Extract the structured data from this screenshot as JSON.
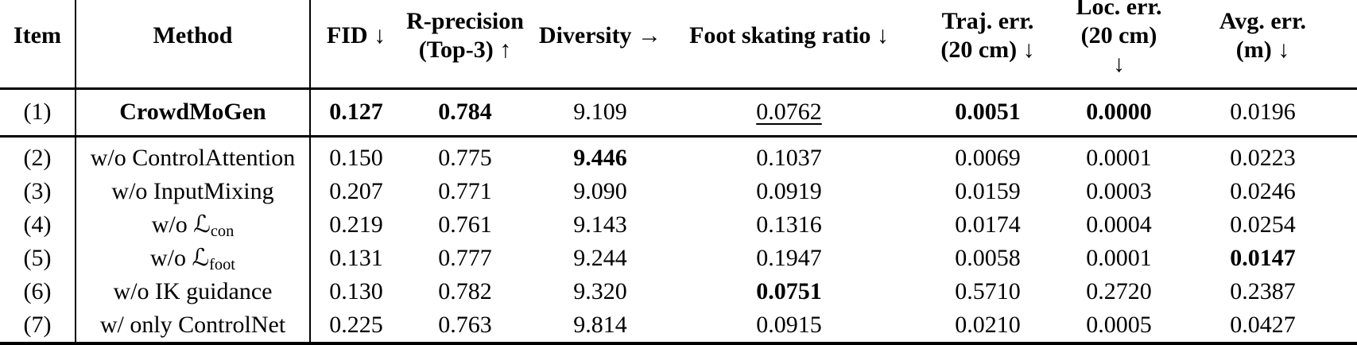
{
  "colors": {
    "text": "#000000",
    "background": "#ffffff",
    "rules": "#000000"
  },
  "table": {
    "columns": [
      {
        "id": "item",
        "line1": "Item",
        "line2": ""
      },
      {
        "id": "method",
        "line1": "Method",
        "line2": ""
      },
      {
        "id": "fid",
        "line1": "FID ↓",
        "line2": ""
      },
      {
        "id": "r_precision",
        "line1": "R-precision",
        "line2": "(Top-3) ↑"
      },
      {
        "id": "diversity",
        "line1": "Diversity →",
        "line2": ""
      },
      {
        "id": "foot_skating",
        "line1": "Foot skating ratio ↓",
        "line2": ""
      },
      {
        "id": "traj_err",
        "line1": "Traj. err.",
        "line2": "(20 cm) ↓"
      },
      {
        "id": "loc_err",
        "line1": "Loc. err.",
        "line2": "(20 cm) ↓"
      },
      {
        "id": "avg_err",
        "line1": "Avg. err.",
        "line2": "(m) ↓"
      }
    ],
    "rows": [
      {
        "cells": [
          {
            "t": "(1)"
          },
          {
            "t": "CrowdMoGen",
            "b": true
          },
          {
            "t": "0.127",
            "b": true
          },
          {
            "t": "0.784",
            "b": true
          },
          {
            "t": "9.109"
          },
          {
            "t": "0.0762",
            "u": true
          },
          {
            "t": "0.0051",
            "b": true
          },
          {
            "t": "0.0000",
            "b": true
          },
          {
            "t": "0.0196"
          }
        ]
      },
      {
        "cells": [
          {
            "t": "(2)"
          },
          {
            "t": "w/o ControlAttention"
          },
          {
            "t": "0.150"
          },
          {
            "t": "0.775"
          },
          {
            "t": "9.446",
            "b": true
          },
          {
            "t": "0.1037"
          },
          {
            "t": "0.0069"
          },
          {
            "t": "0.0001"
          },
          {
            "t": "0.0223"
          }
        ]
      },
      {
        "cells": [
          {
            "t": "(3)"
          },
          {
            "t": "w/o InputMixing"
          },
          {
            "t": "0.207"
          },
          {
            "t": "0.771"
          },
          {
            "t": "9.090"
          },
          {
            "t": "0.0919"
          },
          {
            "t": "0.0159"
          },
          {
            "t": "0.0003"
          },
          {
            "t": "0.0246"
          }
        ]
      },
      {
        "cells": [
          {
            "t": "(4)"
          },
          {
            "t": "w/o ℒ",
            "sub": "con"
          },
          {
            "t": "0.219"
          },
          {
            "t": "0.761"
          },
          {
            "t": "9.143"
          },
          {
            "t": "0.1316"
          },
          {
            "t": "0.0174"
          },
          {
            "t": "0.0004"
          },
          {
            "t": "0.0254"
          }
        ]
      },
      {
        "cells": [
          {
            "t": "(5)"
          },
          {
            "t": "w/o ℒ",
            "sub": "foot"
          },
          {
            "t": "0.131"
          },
          {
            "t": "0.777"
          },
          {
            "t": "9.244"
          },
          {
            "t": "0.1947"
          },
          {
            "t": "0.0058"
          },
          {
            "t": "0.0001"
          },
          {
            "t": "0.0147",
            "b": true
          }
        ]
      },
      {
        "cells": [
          {
            "t": "(6)"
          },
          {
            "t": "w/o IK guidance"
          },
          {
            "t": "0.130"
          },
          {
            "t": "0.782"
          },
          {
            "t": "9.320"
          },
          {
            "t": "0.0751",
            "b": true
          },
          {
            "t": "0.5710"
          },
          {
            "t": "0.2720"
          },
          {
            "t": "0.2387"
          }
        ]
      },
      {
        "cells": [
          {
            "t": "(7)"
          },
          {
            "t": "w/ only ControlNet"
          },
          {
            "t": "0.225"
          },
          {
            "t": "0.763"
          },
          {
            "t": "9.814"
          },
          {
            "t": "0.0915"
          },
          {
            "t": "0.0210"
          },
          {
            "t": "0.0005"
          },
          {
            "t": "0.0427"
          }
        ]
      }
    ]
  }
}
